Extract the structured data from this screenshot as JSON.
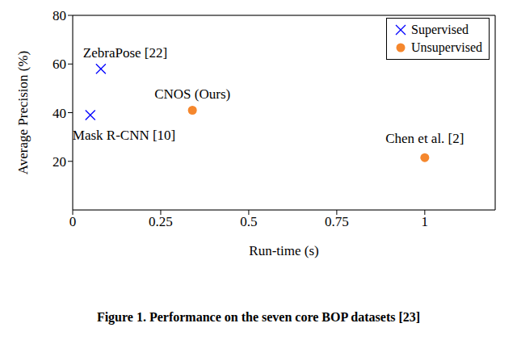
{
  "chart_data": {
    "type": "scatter",
    "caption": "Figure 1. Performance on the seven core BOP datasets [23]",
    "x_label": "Run-time (s)",
    "y_label": "Average Precision (%)",
    "xlim": [
      0,
      1.2
    ],
    "xticks": [
      0,
      0.25,
      0.5,
      0.75,
      1
    ],
    "ylim": [
      0,
      80
    ],
    "yticks": [
      20,
      40,
      60,
      80
    ],
    "grid": true,
    "legend": "upper right",
    "series": [
      {
        "name": "Supervised",
        "color": "#0000ff",
        "marker": "x",
        "x": [
          0.08,
          0.05
        ],
        "values": [
          58,
          39
        ],
        "labels": [
          "ZebraPose [22]",
          "Mask R-CNN [10]"
        ]
      },
      {
        "name": "Unsupervised",
        "color": "#f5872d",
        "marker": "circle",
        "x": [
          0.34,
          1.0
        ],
        "values": [
          41,
          21.5
        ],
        "labels": [
          "CNOS (Ours)",
          "Chen et al. [2]"
        ]
      }
    ]
  }
}
